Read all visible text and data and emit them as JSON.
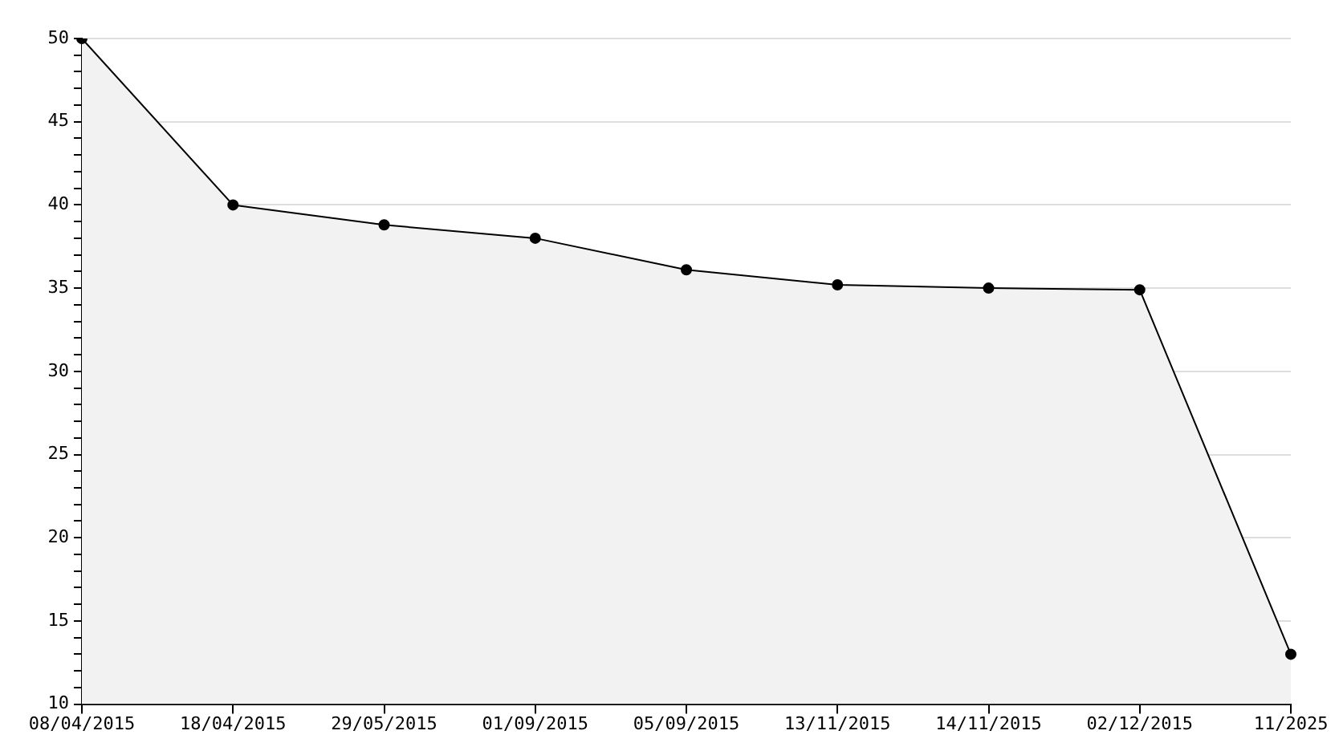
{
  "chart_data": {
    "type": "area",
    "categories": [
      "08/04/2015",
      "18/04/2015",
      "29/05/2015",
      "01/09/2015",
      "05/09/2015",
      "13/11/2015",
      "14/11/2015",
      "02/12/2015",
      "11/2025"
    ],
    "series": [
      {
        "color": "#000000",
        "values": [
          50,
          40,
          38.8,
          38,
          36.1,
          35.2,
          35,
          34.9,
          13
        ]
      }
    ],
    "ylim": [
      10,
      50
    ],
    "yticks": [
      10,
      {
        "value": 11,
        "label": null
      },
      {
        "value": 12,
        "label": null
      },
      {
        "value": 13,
        "label": null
      },
      {
        "value": 14,
        "label": null
      },
      15,
      {
        "value": 16,
        "label": null
      },
      {
        "value": 17,
        "label": null
      },
      {
        "value": 18,
        "label": null
      },
      {
        "value": 19,
        "label": null
      },
      20,
      {
        "value": 21,
        "label": null
      },
      {
        "value": 22,
        "label": null
      },
      {
        "value": 23,
        "label": null
      },
      {
        "value": 24,
        "label": null
      },
      25,
      {
        "value": 26,
        "label": null
      },
      {
        "value": 27,
        "label": null
      },
      {
        "value": 28,
        "label": null
      },
      {
        "value": 29,
        "label": null
      },
      30,
      {
        "value": 31,
        "label": null
      },
      {
        "value": 32,
        "label": null
      },
      {
        "value": 33,
        "label": null
      },
      {
        "value": 34,
        "label": null
      },
      35,
      {
        "value": 36,
        "label": null
      },
      {
        "value": 37,
        "label": null
      },
      {
        "value": 38,
        "label": null
      },
      {
        "value": 39,
        "label": null
      },
      40,
      {
        "value": 41,
        "label": null
      },
      {
        "value": 42,
        "label": null
      },
      {
        "value": 43,
        "label": null
      },
      {
        "value": 44,
        "label": null
      },
      45,
      {
        "value": 46,
        "label": null
      },
      {
        "value": 47,
        "label": null
      },
      {
        "value": 48,
        "label": null
      },
      {
        "value": 49,
        "label": null
      },
      50
    ],
    "grid": "y",
    "marker": "circle",
    "legend": false
  }
}
